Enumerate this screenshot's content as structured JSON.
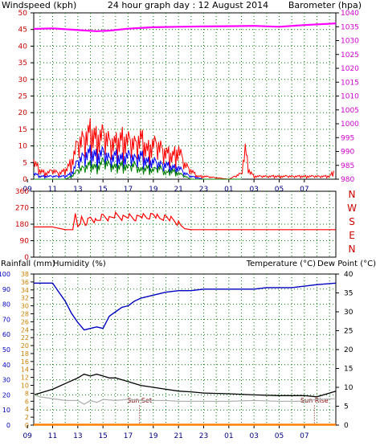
{
  "chart_data": [
    {
      "type": "line",
      "title": "24 hour graph day : 12 August 2014",
      "left_axis_label": "Windspeed (kph)",
      "right_axis_label": "Barometer (hpa)",
      "x_tick_labels": [
        "11",
        "13",
        "15",
        "17",
        "19",
        "21",
        "23",
        "01",
        "03",
        "05",
        "07",
        "09"
      ],
      "x_range_hours": [
        9.5,
        33.5
      ],
      "y_left": {
        "min": 0,
        "max": 50,
        "ticks": [
          0,
          5,
          10,
          15,
          20,
          25,
          30,
          35,
          40,
          45,
          50
        ]
      },
      "y_right": {
        "min": 980,
        "max": 1040,
        "ticks": [
          980,
          985,
          990,
          995,
          1000,
          1005,
          1010,
          1015,
          1020,
          1025,
          1030,
          1035,
          1040
        ]
      },
      "colors": {
        "gust": "#ff0000",
        "average": "#0000ff",
        "min_wind": "#008000",
        "barometer": "#ff00ff",
        "left_axis": "#cc0000",
        "right_axis": "#cc00cc",
        "title": "#000080",
        "grid": "#008000"
      },
      "series": [
        {
          "name": "",
          "role": "barometer",
          "x": [
            9.5,
            11,
            13,
            14.5,
            15.5,
            17,
            19,
            21,
            23,
            25,
            27,
            29,
            31,
            33.5
          ],
          "y": [
            1034.2,
            1034.4,
            1033.8,
            1033.4,
            1033.6,
            1034.3,
            1034.8,
            1035.0,
            1035.1,
            1035.2,
            1035.3,
            1035.0,
            1035.6,
            1036.2
          ]
        },
        {
          "name": "",
          "role": "gust",
          "x": [
            9.5,
            10,
            10.5,
            11,
            11.5,
            12,
            12.5,
            13,
            13.5,
            14,
            14.5,
            15,
            15.5,
            16,
            16.5,
            17,
            17.5,
            18,
            18.5,
            19,
            19.5,
            20,
            20.5,
            21,
            21.5,
            22,
            22.5,
            23,
            25,
            26,
            26.3,
            26.6,
            27,
            30,
            33,
            33.4
          ],
          "y": [
            6,
            3,
            2,
            3,
            2,
            3,
            6,
            12,
            14,
            16,
            14,
            15,
            13,
            12,
            14,
            13,
            12,
            14,
            10,
            12,
            11,
            9,
            8,
            10,
            5,
            3,
            1,
            1,
            0,
            2,
            10,
            3,
            1,
            1,
            1,
            3
          ]
        },
        {
          "name": "",
          "role": "average",
          "x": [
            9.5,
            10,
            11,
            12,
            12.5,
            13,
            13.5,
            14,
            14.5,
            15,
            15.5,
            16,
            16.5,
            17,
            17.5,
            18,
            18.5,
            19,
            19.5,
            20,
            20.5,
            21,
            21.5,
            22,
            23,
            26
          ],
          "y": [
            2,
            1,
            1,
            1,
            2,
            6,
            8,
            9,
            8,
            9,
            7,
            8,
            7,
            8,
            7,
            8,
            6,
            6,
            5,
            5,
            4,
            4,
            2,
            1,
            0,
            0
          ]
        },
        {
          "name": "",
          "role": "min_wind",
          "x": [
            9.5,
            12,
            12.5,
            13,
            13.5,
            14,
            14.5,
            15,
            15.5,
            16,
            16.5,
            17,
            17.5,
            18,
            18.5,
            19,
            19.5,
            20,
            20.5,
            21,
            21.5,
            22,
            26
          ],
          "y": [
            0,
            0,
            1,
            3,
            4,
            5,
            4,
            6,
            5,
            4,
            5,
            4,
            5,
            3,
            4,
            3,
            4,
            2,
            3,
            2,
            1,
            0,
            0
          ]
        }
      ]
    },
    {
      "type": "line",
      "title": "",
      "y_ticks": [
        0,
        90,
        180,
        270,
        360
      ],
      "compass_labels": [
        "N",
        "W",
        "S",
        "E",
        "N"
      ],
      "y_range": [
        0,
        360
      ],
      "colors": {
        "direction": "#ff0000"
      },
      "series": [
        {
          "name": "",
          "role": "wind_direction",
          "x": [
            9.5,
            11,
            12,
            12.6,
            12.8,
            13,
            13.3,
            13.6,
            14,
            14.5,
            15,
            15.5,
            16,
            16.5,
            17,
            17.5,
            18,
            18.5,
            19,
            19.5,
            20,
            20.5,
            21,
            21.5,
            22,
            24,
            26,
            28,
            30,
            33.5
          ],
          "y": [
            165,
            165,
            150,
            150,
            230,
            170,
            210,
            180,
            215,
            195,
            225,
            210,
            230,
            215,
            225,
            210,
            228,
            215,
            235,
            210,
            220,
            205,
            185,
            155,
            150,
            150,
            150,
            150,
            150,
            150
          ]
        }
      ]
    },
    {
      "type": "line",
      "title": "",
      "rainfall_label": "Rainfall (mm)",
      "humidity_label": "Humidity (%)",
      "temperature_label": "Temperature (°C)",
      "dewpoint_label": "Dew Point (°C)",
      "y_humidity": {
        "min": 0,
        "max": 100,
        "ticks": [
          0,
          10,
          20,
          30,
          40,
          50,
          60,
          70,
          80,
          90,
          100
        ]
      },
      "y_rainfall": {
        "min": 0,
        "max": 38,
        "ticks": [
          0,
          2,
          4,
          6,
          8,
          10,
          12,
          14,
          16,
          18,
          20,
          22,
          24,
          26,
          28,
          30,
          32,
          34,
          36,
          38
        ]
      },
      "y_temperature": {
        "min": 0,
        "max": 40,
        "ticks": [
          0,
          5,
          10,
          15,
          20,
          25,
          30,
          35,
          40
        ]
      },
      "annotations": [
        {
          "text": "Sun Set",
          "x": 17.9
        },
        {
          "text": "Sun Rise",
          "x": 31.8
        }
      ],
      "colors": {
        "humidity": "#0000c0",
        "temperature": "#000000",
        "dewpoint": "#b0b0b0",
        "rainfall": "#ff8000",
        "rain_axis": "#d08000",
        "humidity_axis": "#0000c0",
        "dewpoint_axis": "#a0a0a0",
        "annotation": "#800000"
      },
      "series": [
        {
          "name": "",
          "role": "humidity",
          "x": [
            9.5,
            11,
            11.5,
            12,
            12.5,
            13,
            13.5,
            14,
            14.5,
            15,
            15.5,
            16,
            16.5,
            17,
            17.5,
            18,
            18.5,
            19,
            20,
            21,
            22,
            23,
            25,
            27,
            28,
            30,
            32,
            33.5
          ],
          "y": [
            94,
            94,
            88,
            82,
            74,
            68,
            63,
            64,
            65,
            64,
            72,
            75,
            78,
            79,
            82,
            84,
            85,
            86,
            88,
            89,
            89,
            90,
            90,
            90,
            91,
            91,
            93,
            94
          ]
        },
        {
          "name": "",
          "role": "temperature",
          "x": [
            9.5,
            10,
            11,
            12,
            13,
            13.5,
            14,
            14.5,
            15,
            15.5,
            16,
            17,
            18,
            19,
            20,
            21,
            22,
            23,
            25,
            27,
            29,
            31,
            32,
            33,
            33.5
          ],
          "y": [
            8,
            8.5,
            9.5,
            11,
            12.5,
            13.5,
            13,
            13.5,
            13,
            12.5,
            12.5,
            11.5,
            10.5,
            10,
            9.5,
            9,
            8.8,
            8.5,
            8.3,
            8,
            7.8,
            7.8,
            7.5,
            8.5,
            9
          ]
        },
        {
          "name": "",
          "role": "dew_point",
          "x": [
            9.5,
            10,
            11,
            12,
            13,
            13.5,
            14,
            14.5,
            15,
            16,
            17,
            18,
            19,
            20,
            21,
            23,
            25,
            27,
            29,
            31,
            32,
            33.5
          ],
          "y": [
            8,
            7.5,
            7,
            6.5,
            6.5,
            5.5,
            6.5,
            6,
            6.8,
            6.5,
            6.8,
            6.5,
            6.5,
            6.5,
            6.3,
            6.3,
            6.3,
            6.5,
            6.3,
            6.3,
            6.8,
            7
          ]
        },
        {
          "name": "",
          "role": "rainfall",
          "x": [
            9.5,
            33.5
          ],
          "y": [
            0.1,
            0.1
          ]
        }
      ]
    }
  ]
}
